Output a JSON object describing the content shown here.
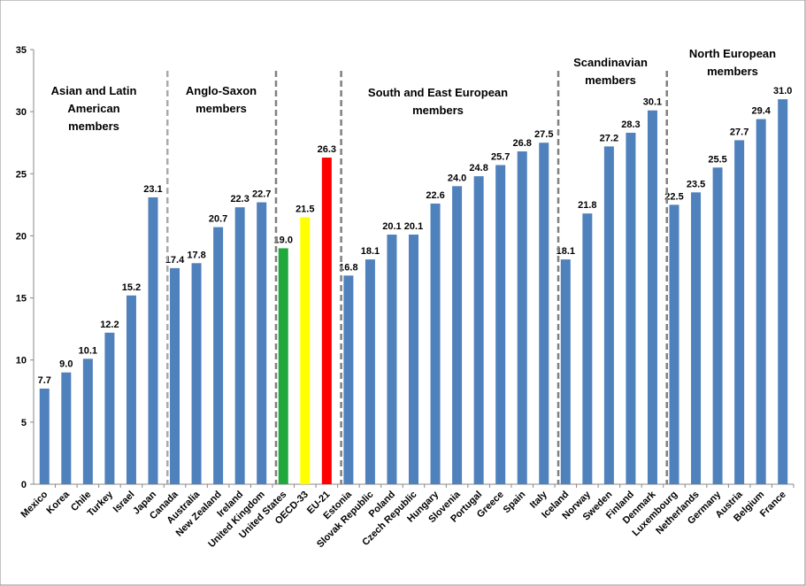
{
  "chart_data": {
    "type": "bar",
    "categories": [
      "Mexico",
      "Korea",
      "Chile",
      "Turkey",
      "Israel",
      "Japan",
      "Canada",
      "Australia",
      "New Zealand",
      "Ireland",
      "United Kingdom",
      "United States",
      "OECD-33",
      "EU-21",
      "Estonia",
      "Slovak Republic",
      "Poland",
      "Czech Republic",
      "Hungary",
      "Slovenia",
      "Portugal",
      "Greece",
      "Spain",
      "Italy",
      "Iceland",
      "Norway",
      "Sweden",
      "Finland",
      "Denmark",
      "Luxembourg",
      "Netherlands",
      "Germany",
      "Austria",
      "Belgium",
      "France"
    ],
    "values": [
      7.7,
      9.0,
      10.1,
      12.2,
      15.2,
      23.1,
      17.4,
      17.8,
      20.7,
      22.3,
      22.7,
      19.0,
      21.5,
      26.3,
      16.8,
      18.1,
      20.1,
      20.1,
      22.6,
      24.0,
      24.8,
      25.7,
      26.8,
      27.5,
      18.1,
      21.8,
      27.2,
      28.3,
      30.1,
      22.5,
      23.5,
      25.5,
      27.7,
      29.4,
      31.0
    ],
    "value_labels": [
      "7.7",
      "9.0",
      "10.1",
      "12.2",
      "15.2",
      "23.1",
      "17.4",
      "17.8",
      "20.7",
      "22.3",
      "22.7",
      "19.0",
      "21.5",
      "26.3",
      "16.8",
      "18.1",
      "20.1",
      "20.1",
      "22.6",
      "24.0",
      "24.8",
      "25.7",
      "26.8",
      "27.5",
      "18.1",
      "21.8",
      "27.2",
      "28.3",
      "30.1",
      "22.5",
      "23.5",
      "25.5",
      "27.7",
      "29.4",
      "31.0"
    ],
    "colors": [
      "#4f81bd",
      "#4f81bd",
      "#4f81bd",
      "#4f81bd",
      "#4f81bd",
      "#4f81bd",
      "#4f81bd",
      "#4f81bd",
      "#4f81bd",
      "#4f81bd",
      "#4f81bd",
      "#1fa83b",
      "#ffff00",
      "#ff0000",
      "#4f81bd",
      "#4f81bd",
      "#4f81bd",
      "#4f81bd",
      "#4f81bd",
      "#4f81bd",
      "#4f81bd",
      "#4f81bd",
      "#4f81bd",
      "#4f81bd",
      "#4f81bd",
      "#4f81bd",
      "#4f81bd",
      "#4f81bd",
      "#4f81bd",
      "#4f81bd",
      "#4f81bd",
      "#4f81bd",
      "#4f81bd",
      "#4f81bd",
      "#4f81bd"
    ],
    "ylim": [
      0,
      35
    ],
    "yticks": [
      0,
      5,
      10,
      15,
      20,
      25,
      30,
      35
    ],
    "grid": false,
    "annotations": [
      [
        "Asian and Latin",
        "American",
        "members"
      ],
      [
        "Anglo-Saxon",
        "members"
      ],
      [
        "South and East European",
        "members"
      ],
      [
        "Scandinavian",
        "members"
      ],
      [
        "North European",
        "members"
      ]
    ]
  }
}
